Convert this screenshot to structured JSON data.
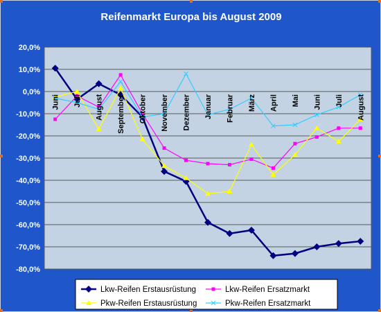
{
  "chart_data": {
    "type": "line",
    "title": "Reifenmarkt Europa bis August 2009",
    "categories": [
      "Juni",
      "Juli",
      "August",
      "September",
      "Oktober",
      "November",
      "Dezember",
      "Januar",
      "Februar",
      "März",
      "April",
      "Mai",
      "Juni",
      "Juli",
      "August"
    ],
    "ylim": [
      -80,
      20
    ],
    "yticks": [
      20,
      10,
      0,
      -10,
      -20,
      -30,
      -40,
      -50,
      -60,
      -70,
      -80
    ],
    "ytick_labels": [
      "20,0%",
      "10,0%",
      "0,0%",
      "-10,0%",
      "-20,0%",
      "-30,0%",
      "-40,0%",
      "-50,0%",
      "-60,0%",
      "-70,0%",
      "-80,0%"
    ],
    "grid": true,
    "legend_position": "bottom",
    "colors": {
      "frame": "#1f56c9",
      "plot_area": "#c3d3e3",
      "gridline": "#5a5a5a",
      "title": "#ffffff",
      "tick_label": "#ffffff",
      "category_label": "#000000"
    },
    "series": [
      {
        "name": "Lkw-Reifen Erstausrüstung",
        "color": "#000080",
        "marker": "diamond",
        "bold": true,
        "values": [
          10.5,
          -3.5,
          3.5,
          -1.5,
          -11.5,
          -36,
          -40.5,
          -59,
          -64,
          -62.5,
          -74,
          -73,
          -70,
          -68.5,
          -67.5
        ]
      },
      {
        "name": "Lkw-Reifen Ersatzmarkt",
        "color": "#ff00ff",
        "marker": "square",
        "bold": false,
        "values": [
          -12.5,
          -2,
          -7,
          7.5,
          -10,
          -25.5,
          -31,
          -32.5,
          -33,
          -30.5,
          -34.5,
          -23.5,
          -20.5,
          -16.5,
          -16.5
        ]
      },
      {
        "name": "Pkw-Reifen Erstausrüstung",
        "color": "#ffff00",
        "marker": "triangle",
        "bold": false,
        "values": [
          -2.5,
          0,
          -17,
          1.5,
          -21.5,
          -33.5,
          -39,
          -46,
          -45,
          -24,
          -37.5,
          -28.5,
          -16.5,
          -22.5,
          -12.5
        ]
      },
      {
        "name": "Pkw-Reifen Ersatzmarkt",
        "color": "#33ccff",
        "marker": "cross",
        "bold": false,
        "values": [
          -3,
          -5,
          -8,
          4.5,
          -11.5,
          -10,
          8,
          -10.5,
          -8,
          -3,
          -15.5,
          -15,
          -10.5,
          -7,
          -1.5
        ]
      }
    ]
  }
}
